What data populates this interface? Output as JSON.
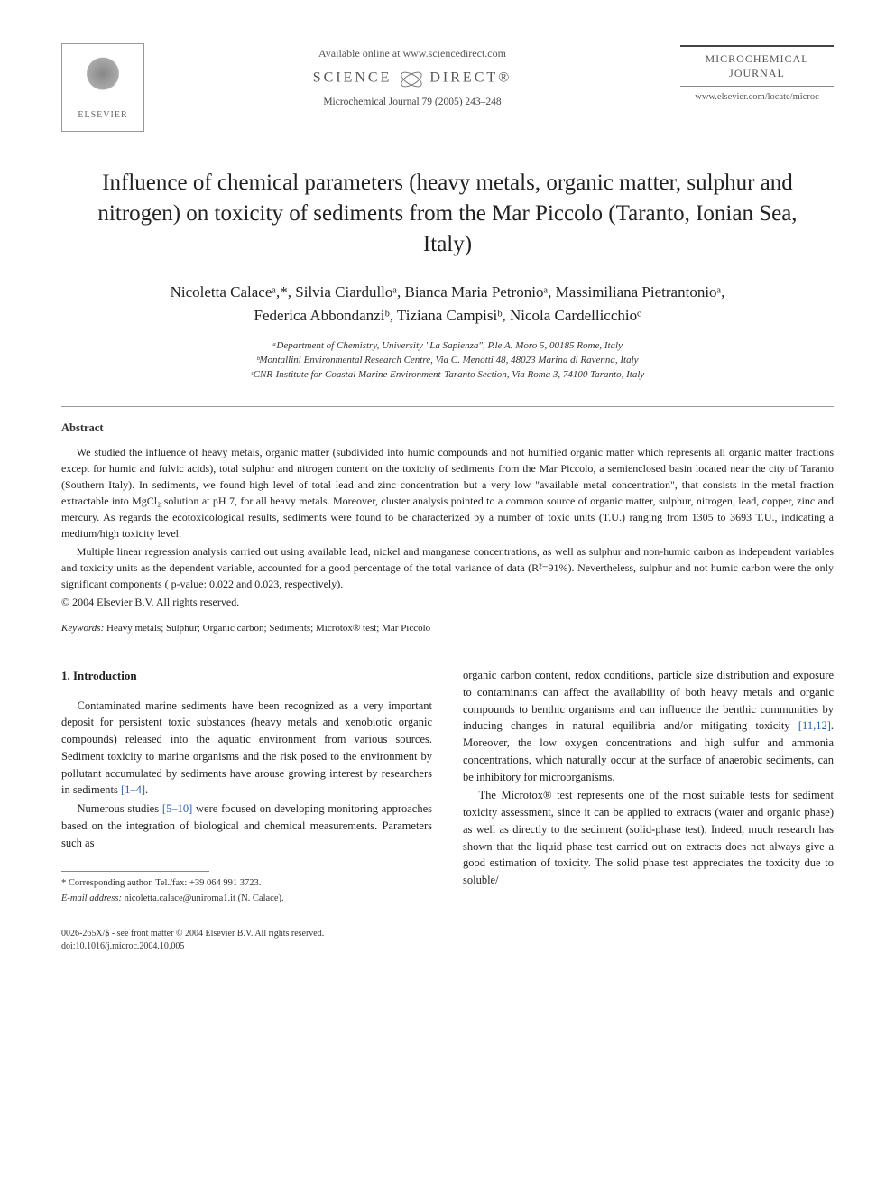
{
  "header": {
    "publisher_logo_label": "ELSEVIER",
    "available_online": "Available online at www.sciencedirect.com",
    "sciencedirect_left": "SCIENCE",
    "sciencedirect_right": "DIRECT®",
    "journal_ref": "Microchemical Journal 79 (2005) 243–248",
    "journal_name_line1": "MICROCHEMICAL",
    "journal_name_line2": "JOURNAL",
    "journal_url": "www.elsevier.com/locate/microc"
  },
  "title": "Influence of chemical parameters (heavy metals, organic matter, sulphur and nitrogen) on toxicity of sediments from the Mar Piccolo (Taranto, Ionian Sea, Italy)",
  "authors_line1": "Nicoletta Calaceᵃ,*, Silvia Ciardulloᵃ, Bianca Maria Petronioᵃ, Massimiliana Pietrantonioᵃ,",
  "authors_line2": "Federica Abbondanziᵇ, Tiziana Campisiᵇ, Nicola Cardellicchioᶜ",
  "affiliations": {
    "a": "ᵃDepartment of Chemistry, University \"La Sapienza\", P.le A. Moro 5, 00185 Rome, Italy",
    "b": "ᵇMontallini Environmental Research Centre, Via C. Menotti 48, 48023 Marina di Ravenna, Italy",
    "c": "ᶜCNR-Institute for Coastal Marine Environment-Taranto Section, Via Roma 3, 74100 Taranto, Italy"
  },
  "abstract": {
    "heading": "Abstract",
    "p1": "We studied the influence of heavy metals, organic matter (subdivided into humic compounds and not humified organic matter which represents all organic matter fractions except for humic and fulvic acids), total sulphur and nitrogen content on the toxicity of sediments from the Mar Piccolo, a semienclosed basin located near the city of Taranto (Southern Italy). In sediments, we found high level of total lead and zinc concentration but a very low \"available metal concentration\", that consists in the metal fraction extractable into MgCl₂ solution at pH 7, for all heavy metals. Moreover, cluster analysis pointed to a common source of organic matter, sulphur, nitrogen, lead, copper, zinc and mercury. As regards the ecotoxicological results, sediments were found to be characterized by a number of toxic units (T.U.) ranging from 1305 to 3693 T.U., indicating a medium/high toxicity level.",
    "p2": "Multiple linear regression analysis carried out using available lead, nickel and manganese concentrations, as well as sulphur and non-humic carbon as independent variables and toxicity units as the dependent variable, accounted for a good percentage of the total variance of data (R²=91%). Nevertheless, sulphur and not humic carbon were the only significant components ( p-value: 0.022 and 0.023, respectively).",
    "copyright": "© 2004 Elsevier B.V. All rights reserved."
  },
  "keywords": {
    "label": "Keywords:",
    "text": " Heavy metals; Sulphur; Organic carbon; Sediments; Microtox® test; Mar Piccolo"
  },
  "intro": {
    "heading": "1. Introduction",
    "left_p1": "Contaminated marine sediments have been recognized as a very important deposit for persistent toxic substances (heavy metals and xenobiotic organic compounds) released into the aquatic environment from various sources. Sediment toxicity to marine organisms and the risk posed to the environment by pollutant accumulated by sediments have arouse growing interest by researchers in sediments ",
    "left_ref1": "[1–4]",
    "left_p1_end": ".",
    "left_p2a": "Numerous studies ",
    "left_ref2": "[5–10]",
    "left_p2b": " were focused on developing monitoring approaches based on the integration of biological and chemical measurements. Parameters such as",
    "right_p1a": "organic carbon content, redox conditions, particle size distribution and exposure to contaminants can affect the availability of both heavy metals and organic compounds to benthic organisms and can influence the benthic communities by inducing changes in natural equilibria and/or mitigating toxicity ",
    "right_ref1": "[11,12]",
    "right_p1b": ". Moreover, the low oxygen concentrations and high sulfur and ammonia concentrations, which naturally occur at the surface of anaerobic sediments, can be inhibitory for microorganisms.",
    "right_p2": "The Microtox® test represents one of the most suitable tests for sediment toxicity assessment, since it can be applied to extracts (water and organic phase) as well as directly to the sediment (solid-phase test). Indeed, much research has shown that the liquid phase test carried out on extracts does not always give a good estimation of toxicity. The solid phase test appreciates the toxicity due to soluble/"
  },
  "footnotes": {
    "corr": "* Corresponding author. Tel./fax: +39 064 991 3723.",
    "email_label": "E-mail address:",
    "email_value": " nicoletta.calace@uniroma1.it (N. Calace)."
  },
  "bottom": {
    "line1": "0026-265X/$ - see front matter © 2004 Elsevier B.V. All rights reserved.",
    "line2": "doi:10.1016/j.microc.2004.10.005"
  },
  "colors": {
    "link": "#2a5db0",
    "text": "#222222",
    "rule": "#999999"
  }
}
